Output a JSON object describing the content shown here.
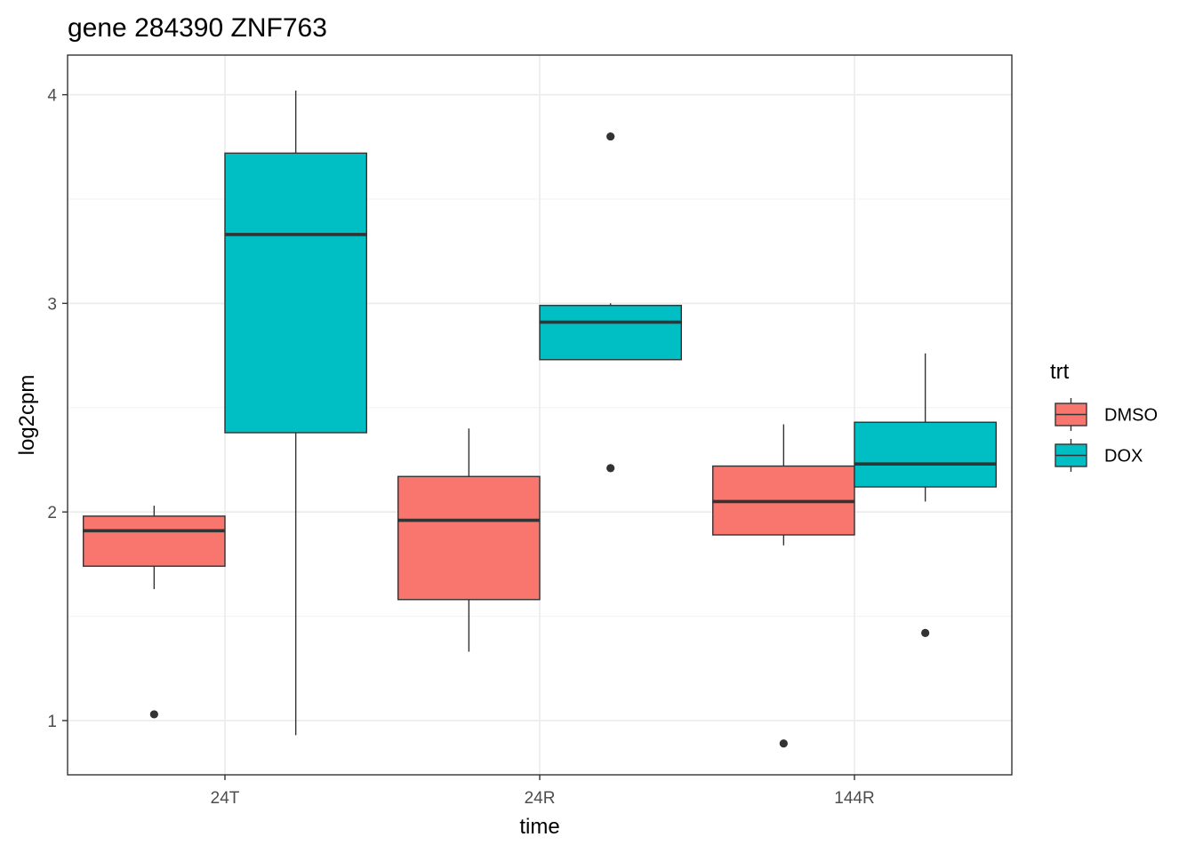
{
  "chart_data": {
    "type": "boxplot",
    "title": "gene 284390 ZNF763",
    "xlabel": "time",
    "ylabel": "log2cpm",
    "categories": [
      "24T",
      "24R",
      "144R"
    ],
    "yticks": [
      "1",
      "2",
      "3",
      "4"
    ],
    "ylim": [
      0.74,
      4.19
    ],
    "grid": true,
    "legend": {
      "title": "trt",
      "position": "right"
    },
    "series": [
      {
        "name": "DMSO",
        "color": "#F8766D",
        "boxes": [
          {
            "category": "24T",
            "whisker_low": 1.63,
            "q1": 1.74,
            "median": 1.91,
            "q3": 1.98,
            "whisker_high": 2.03,
            "outliers": [
              1.03
            ]
          },
          {
            "category": "24R",
            "whisker_low": 1.33,
            "q1": 1.58,
            "median": 1.96,
            "q3": 2.17,
            "whisker_high": 2.4,
            "outliers": []
          },
          {
            "category": "144R",
            "whisker_low": 1.84,
            "q1": 1.89,
            "median": 2.05,
            "q3": 2.22,
            "whisker_high": 2.42,
            "outliers": [
              0.89
            ]
          }
        ]
      },
      {
        "name": "DOX",
        "color": "#00BFC4",
        "boxes": [
          {
            "category": "24T",
            "whisker_low": 0.93,
            "q1": 2.38,
            "median": 3.33,
            "q3": 3.72,
            "whisker_high": 4.02,
            "outliers": []
          },
          {
            "category": "24R",
            "whisker_low": 2.73,
            "q1": 2.73,
            "median": 2.91,
            "q3": 2.99,
            "whisker_high": 3.0,
            "outliers": [
              3.8,
              2.21
            ]
          },
          {
            "category": "144R",
            "whisker_low": 2.05,
            "q1": 2.12,
            "median": 2.23,
            "q3": 2.43,
            "whisker_high": 2.76,
            "outliers": [
              1.42
            ]
          }
        ]
      }
    ]
  }
}
